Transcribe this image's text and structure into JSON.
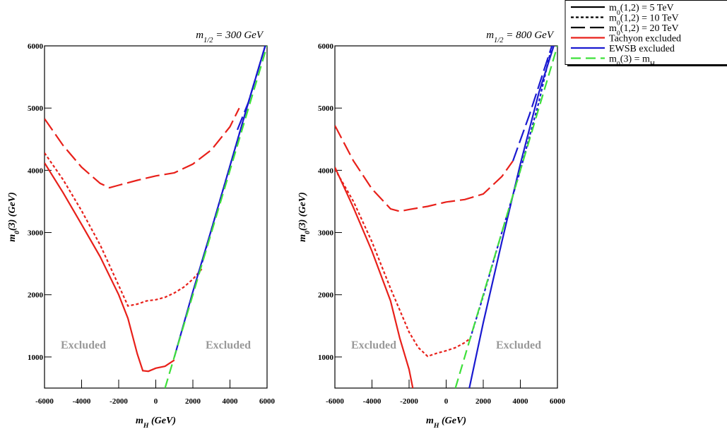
{
  "chart_data": [
    {
      "type": "line",
      "title_parts": [
        "m",
        "1/2",
        " = 300 GeV"
      ],
      "xlabel_parts": [
        "m",
        "H",
        " (GeV)"
      ],
      "ylabel_parts": [
        "m",
        "0",
        "(3) (GeV)"
      ],
      "xlim": [
        -6000,
        6000
      ],
      "ylim": [
        500,
        6000
      ],
      "xticks": [
        -6000,
        -4000,
        -2000,
        0,
        2000,
        4000,
        6000
      ],
      "yticks": [
        1000,
        2000,
        3000,
        4000,
        5000,
        6000
      ],
      "annotations": [
        "Excluded",
        "Excluded"
      ],
      "series": [
        {
          "color": "#e8201a",
          "dash": "solid",
          "x": [
            -6000,
            -5000,
            -4000,
            -3000,
            -2000,
            -1500,
            -1000,
            -700,
            -400,
            0,
            500,
            1000
          ],
          "values": [
            4120,
            3640,
            3130,
            2610,
            2000,
            1620,
            1050,
            780,
            770,
            820,
            850,
            950
          ]
        },
        {
          "color": "#e8201a",
          "dash": "dotted",
          "x": [
            -6000,
            -5000,
            -4000,
            -3000,
            -2000,
            -1500,
            -1000,
            -500,
            0,
            500,
            1000,
            1500,
            2000,
            2500
          ],
          "values": [
            4280,
            3850,
            3350,
            2800,
            2150,
            1820,
            1850,
            1900,
            1920,
            1960,
            2030,
            2120,
            2250,
            2420
          ]
        },
        {
          "color": "#e8201a",
          "dash": "long-dash",
          "x": [
            -6000,
            -5000,
            -4000,
            -3000,
            -2500,
            -2000,
            -1000,
            0,
            1000,
            2000,
            3000,
            4000,
            4500
          ],
          "values": [
            4830,
            4400,
            4050,
            3790,
            3720,
            3760,
            3840,
            3910,
            3960,
            4100,
            4330,
            4700,
            5000
          ]
        },
        {
          "color": "#1a1ad0",
          "dash": "solid",
          "x": [
            1000,
            2000,
            3000,
            4000,
            5000,
            5900
          ],
          "values": [
            1000,
            2050,
            3050,
            4070,
            5100,
            6000
          ]
        },
        {
          "color": "#1a1ad0",
          "dash": "dotted",
          "x": [
            2500,
            3000,
            4000,
            5000,
            5900
          ],
          "values": [
            2520,
            3050,
            4070,
            5100,
            6000
          ]
        },
        {
          "color": "#1a1ad0",
          "dash": "long-dash",
          "x": [
            4400,
            5000,
            5900
          ],
          "values": [
            4650,
            5100,
            6000
          ]
        },
        {
          "color": "#3ee03a",
          "dash": "dashed",
          "x": [
            500,
            6000
          ],
          "values": [
            500,
            6000
          ]
        }
      ]
    },
    {
      "type": "line",
      "title_parts": [
        "m",
        "1/2",
        " = 800 GeV"
      ],
      "xlabel_parts": [
        "m",
        "H",
        " (GeV)"
      ],
      "ylabel_parts": [
        "m",
        "0",
        "(3) (GeV)"
      ],
      "xlim": [
        -6000,
        6000
      ],
      "ylim": [
        500,
        6000
      ],
      "xticks": [
        -6000,
        -4000,
        -2000,
        0,
        2000,
        4000,
        6000
      ],
      "yticks": [
        1000,
        2000,
        3000,
        4000,
        5000,
        6000
      ],
      "annotations": [
        "Excluded",
        "Excluded"
      ],
      "series": [
        {
          "color": "#e8201a",
          "dash": "solid",
          "x": [
            -6000,
            -5000,
            -4000,
            -3000,
            -2500,
            -2000,
            -1800
          ],
          "values": [
            4050,
            3400,
            2700,
            1900,
            1300,
            800,
            500
          ]
        },
        {
          "color": "#e8201a",
          "dash": "dotted",
          "x": [
            -6000,
            -5000,
            -4000,
            -3000,
            -2000,
            -1500,
            -1000,
            -500,
            0,
            500,
            1000,
            1300
          ],
          "values": [
            4020,
            3500,
            2850,
            2100,
            1400,
            1150,
            1010,
            1060,
            1100,
            1150,
            1230,
            1300
          ]
        },
        {
          "color": "#e8201a",
          "dash": "long-dash",
          "x": [
            -6000,
            -5000,
            -4000,
            -3000,
            -2500,
            -2000,
            -1000,
            0,
            1000,
            2000,
            3000,
            3600
          ],
          "values": [
            4720,
            4150,
            3700,
            3380,
            3340,
            3370,
            3420,
            3490,
            3530,
            3620,
            3900,
            4150
          ]
        },
        {
          "color": "#1a1ad0",
          "dash": "solid",
          "x": [
            1250,
            2000,
            3000,
            4000,
            5000,
            5800
          ],
          "values": [
            500,
            1550,
            2850,
            4100,
            5250,
            6000
          ]
        },
        {
          "color": "#1a1ad0",
          "dash": "dotted",
          "x": [
            1300,
            2000,
            3000,
            4000,
            5000,
            5700
          ],
          "values": [
            1300,
            1980,
            3000,
            4000,
            5100,
            6000
          ]
        },
        {
          "color": "#1a1ad0",
          "dash": "long-dash",
          "x": [
            3600,
            4500,
            5700
          ],
          "values": [
            4150,
            4900,
            6000
          ]
        },
        {
          "color": "#3ee03a",
          "dash": "dashed",
          "x": [
            500,
            6000
          ],
          "values": [
            500,
            6000
          ]
        }
      ]
    }
  ],
  "legend": {
    "entries": [
      {
        "label_parts": [
          "m",
          "0",
          "(1,2) = 5 TeV"
        ],
        "color": "#000000",
        "dash": "solid"
      },
      {
        "label_parts": [
          "m",
          "0",
          "(1,2) = 10 TeV"
        ],
        "color": "#000000",
        "dash": "dotted"
      },
      {
        "label_parts": [
          "m",
          "0",
          "(1,2) = 20 TeV"
        ],
        "color": "#000000",
        "dash": "long-dash"
      },
      {
        "label_parts": [
          "Tachyon excluded"
        ],
        "color": "#e8201a",
        "dash": "solid"
      },
      {
        "label_parts": [
          "EWSB excluded"
        ],
        "color": "#1a1ad0",
        "dash": "solid"
      },
      {
        "label_parts": [
          "m",
          "0",
          "(3) = m",
          "H"
        ],
        "color": "#3ee03a",
        "dash": "dashed"
      }
    ]
  }
}
